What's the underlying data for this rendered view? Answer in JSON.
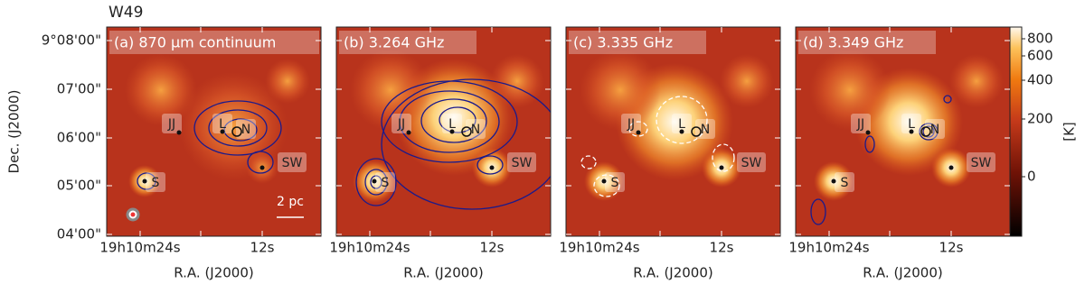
{
  "title": "W49",
  "y_axis": {
    "label": "Dec. (J2000)",
    "ticks": [
      "9°08'00\"",
      "07'00\"",
      "06'00\"",
      "05'00\"",
      "04'00\""
    ]
  },
  "x_axis": {
    "label": "R.A. (J2000)",
    "ticks": [
      "19h10m24s",
      "12s"
    ]
  },
  "panels": [
    {
      "label": "(a) 870 µm continuum",
      "scale_bar": "2 pc"
    },
    {
      "label": "(b) 3.264 GHz"
    },
    {
      "label": "(c) 3.335 GHz"
    },
    {
      "label": "(d) 3.349 GHz"
    }
  ],
  "sources": [
    "JJ",
    "L",
    "N",
    "SW",
    "S"
  ],
  "colorbar": {
    "ticks": [
      800,
      600,
      400,
      200,
      0
    ],
    "unit": "[K]"
  }
}
